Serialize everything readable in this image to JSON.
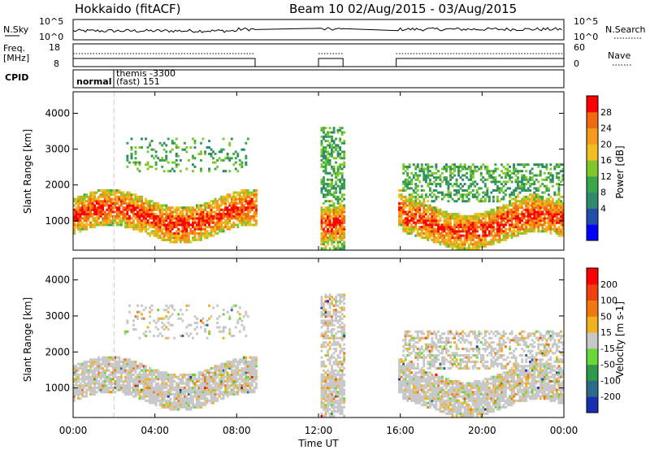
{
  "header": {
    "site": "Hokkaido (fitACF)",
    "beam_info": "Beam 10 02/Aug/2015 - 03/Aug/2015"
  },
  "panels": {
    "noise": {
      "left_label": "N.Sky",
      "left_ticks": [
        "10^5",
        "10^0"
      ],
      "right_label": "N.Search",
      "right_ticks": [
        "10^5",
        "10^0"
      ]
    },
    "freq": {
      "left_label_1": "Freq.",
      "left_label_2": "[MHz]",
      "left_ticks": [
        "18",
        "8"
      ],
      "right_label": "Nave",
      "right_ticks": [
        "60",
        "0"
      ]
    },
    "cpid": {
      "label": "CPID",
      "mode_1": "normal",
      "mode_2_line1": "themis -3300",
      "mode_2_line2": "(fast) 151"
    }
  },
  "chart_data": [
    {
      "type": "heatmap",
      "title": "",
      "ylabel": "Slant Range [km]",
      "ylim": [
        180,
        4600
      ],
      "yticks": [
        1000,
        2000,
        3000,
        4000
      ],
      "colorbar_label": "Power [dB]",
      "colorbar_ticks": [
        "28",
        "24",
        "20",
        "16",
        "12",
        "8",
        "4"
      ],
      "colors": [
        "#0000ff",
        "#1f4fa8",
        "#2f8a6a",
        "#3aa64a",
        "#7fca2a",
        "#f0c020",
        "#f59a1a",
        "#f06a10",
        "#ff0000"
      ]
    },
    {
      "type": "heatmap",
      "title": "",
      "ylabel": "Velocity [m s^-1]",
      "ylabel_left": "Slant Range [km]",
      "ylim": [
        180,
        4600
      ],
      "yticks": [
        1000,
        2000,
        3000,
        4000
      ],
      "colorbar_label": "Velocity [m s-1]",
      "colorbar_ticks": [
        "200",
        "100",
        "50",
        "15",
        "-15",
        "-50",
        "-100",
        "-200"
      ],
      "colors": [
        "#1a2fb0",
        "#2a6a8a",
        "#2f9a4a",
        "#6ad63a",
        "#c8c8c8",
        "#f2b21e",
        "#f07a10",
        "#f04010",
        "#ff0000"
      ]
    }
  ],
  "x_axis": {
    "label": "Time UT",
    "ticks": [
      "00:00",
      "04:00",
      "08:00",
      "12:00",
      "16:00",
      "20:00",
      "00:00"
    ]
  },
  "data_gaps_hours": [
    [
      8.9,
      12.0
    ],
    [
      13.2,
      15.8
    ]
  ]
}
